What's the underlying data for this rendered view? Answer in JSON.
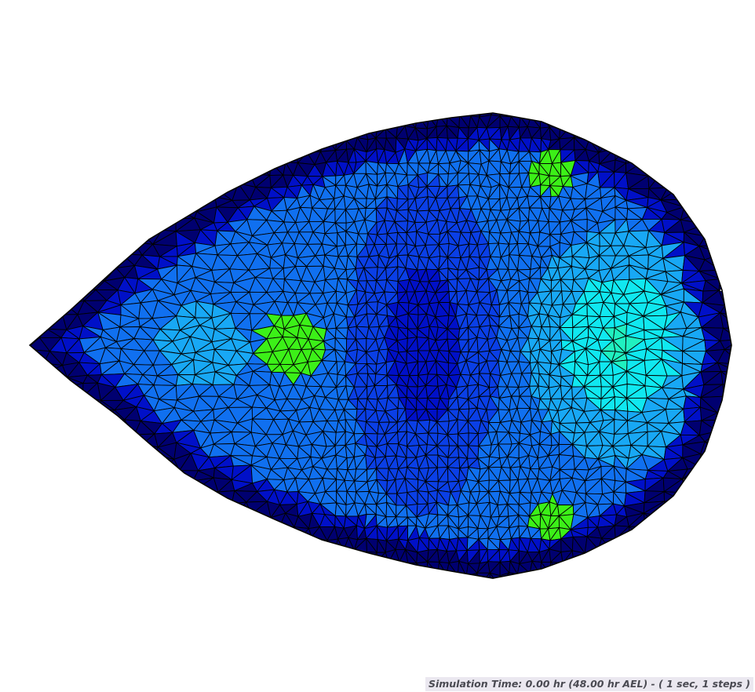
{
  "status": {
    "simulation_time_text": "Simulation Time: 0.00 hr (48.00 hr AEL) - ( 1 sec, 1 steps )"
  },
  "mesh": {
    "element_type": "triangle",
    "edge_color": "#000000",
    "colormap": [
      "#000070",
      "#0010c8",
      "#0a3fe6",
      "#1070f0",
      "#18a8f5",
      "#10e8f0",
      "#20f0c0",
      "#3cf018"
    ],
    "hotspots": [
      {
        "name": "left-hotspot",
        "color": "#20f0c0"
      },
      {
        "name": "top-right-hotspot",
        "color": "#3cf018"
      },
      {
        "name": "bottom-right-hotspot",
        "color": "#3cf018"
      }
    ]
  }
}
